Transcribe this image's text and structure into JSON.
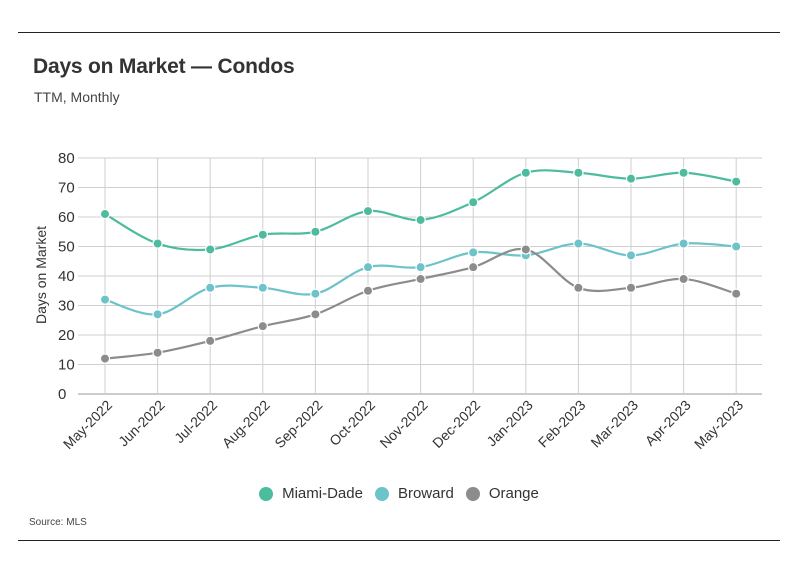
{
  "header": {
    "title": "Days on Market — Condos",
    "subtitle": "TTM, Monthly"
  },
  "footer": {
    "source": "Source: MLS"
  },
  "chart_data": {
    "type": "line",
    "title": "Days on Market — Condos",
    "subtitle": "TTM, Monthly",
    "xlabel": "",
    "ylabel": "Days on Market",
    "ylim": [
      0,
      80
    ],
    "yticks": [
      0,
      10,
      20,
      30,
      40,
      50,
      60,
      70,
      80
    ],
    "grid": true,
    "legend_position": "bottom-center",
    "categories": [
      "May-2022",
      "Jun-2022",
      "Jul-2022",
      "Aug-2022",
      "Sep-2022",
      "Oct-2022",
      "Nov-2022",
      "Dec-2022",
      "Jan-2023",
      "Feb-2023",
      "Mar-2023",
      "Apr-2023",
      "May-2023"
    ],
    "series": [
      {
        "name": "Miami-Dade",
        "color": "#4dbb9e",
        "values": [
          61,
          51,
          49,
          54,
          55,
          62,
          59,
          65,
          75,
          75,
          73,
          75,
          72
        ]
      },
      {
        "name": "Broward",
        "color": "#6cc3c9",
        "values": [
          32,
          27,
          36,
          36,
          34,
          43,
          43,
          48,
          47,
          51,
          47,
          51,
          50
        ]
      },
      {
        "name": "Orange",
        "color": "#8c8c8c",
        "values": [
          12,
          14,
          18,
          23,
          27,
          35,
          39,
          43,
          49,
          36,
          36,
          39,
          34
        ]
      }
    ]
  }
}
